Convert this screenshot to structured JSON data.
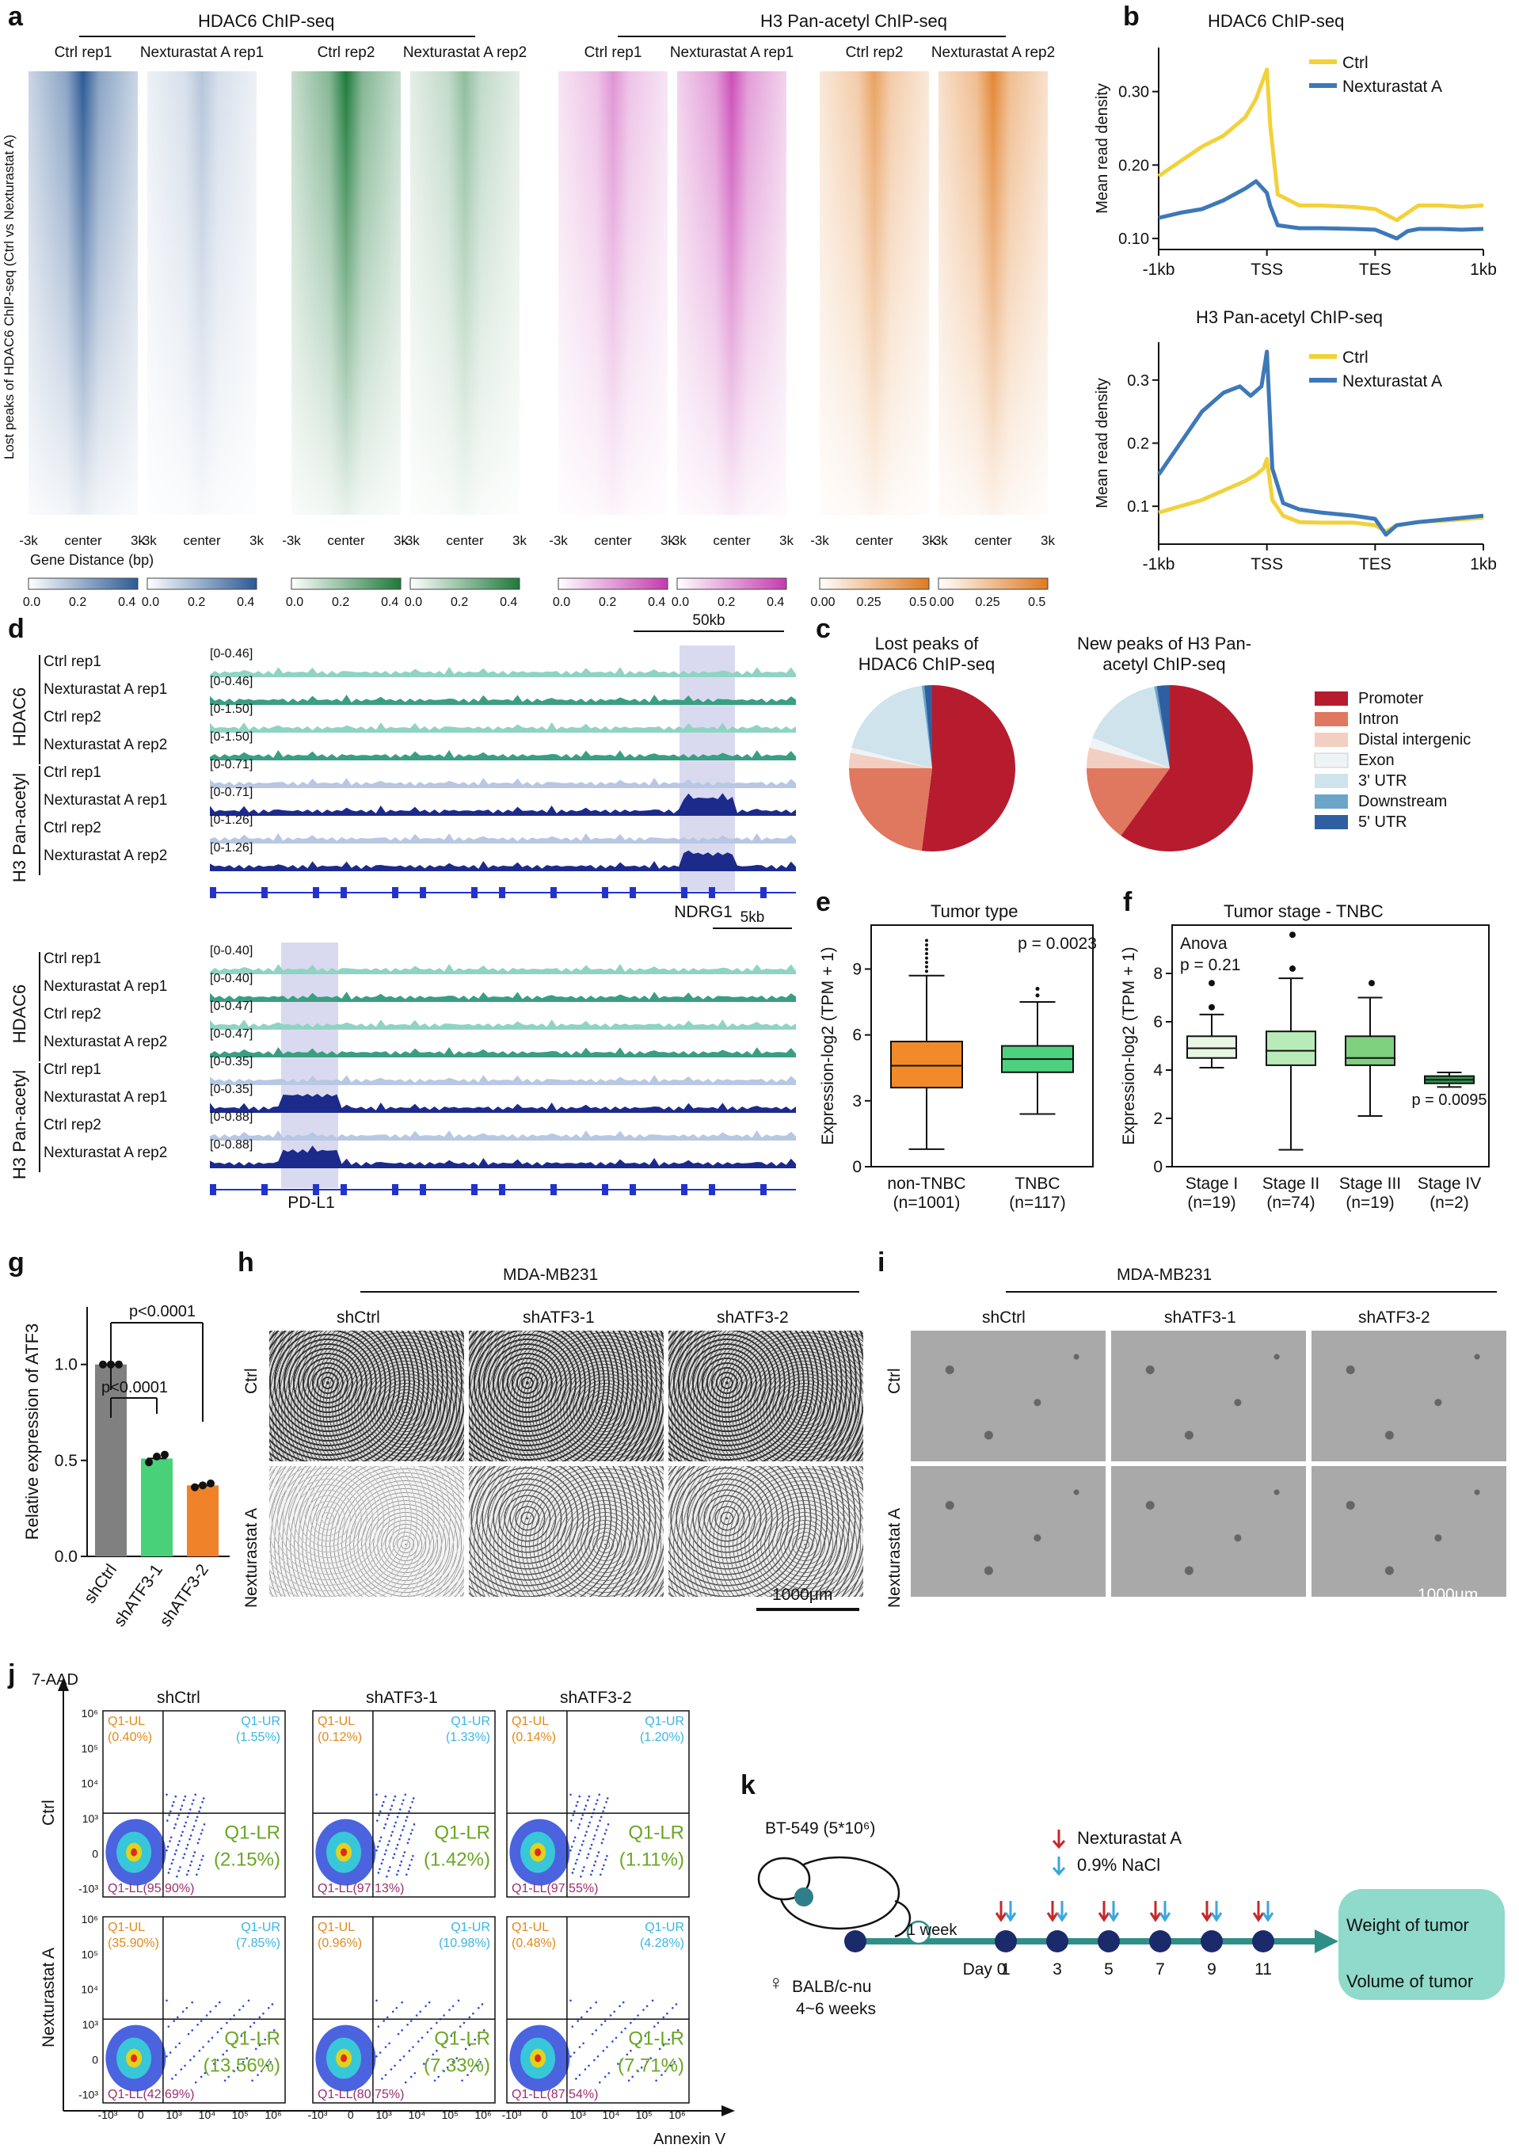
{
  "panels": {
    "a": "a",
    "b": "b",
    "c": "c",
    "d": "d",
    "e": "e",
    "f": "f",
    "g": "g",
    "h": "h",
    "i": "i",
    "j": "j",
    "k": "k"
  },
  "a": {
    "group1": "HDAC6 ChIP-seq",
    "group2": "H3 Pan-acetyl ChIP-seq",
    "ylabel": "Lost peaks of HDAC6 ChIP-seq (Ctrl vs Nexturastat A)",
    "xlabel": "Gene Distance (bp)",
    "heatmaps": [
      {
        "title": "Ctrl rep1",
        "color": "#2c5a96",
        "ticks": [
          "-3k",
          "center",
          "3k"
        ],
        "scale": [
          "0.0",
          "0.2",
          "0.4"
        ]
      },
      {
        "title": "Nexturastat A rep1",
        "color": "#2c5a96",
        "ticks": [
          "-3k",
          "center",
          "3k"
        ],
        "scale": [
          "0.0",
          "0.2",
          "0.4"
        ]
      },
      {
        "title": "Ctrl rep2",
        "color": "#1d7a3a",
        "ticks": [
          "-3k",
          "center",
          "3k"
        ],
        "scale": [
          "0.0",
          "0.2",
          "0.4"
        ]
      },
      {
        "title": "Nexturastat A rep2",
        "color": "#1d7a3a",
        "ticks": [
          "-3k",
          "center",
          "3k"
        ],
        "scale": [
          "0.0",
          "0.2",
          "0.4"
        ]
      },
      {
        "title": "Ctrl rep1",
        "color": "#c63ab0",
        "ticks": [
          "-3k",
          "center",
          "3k"
        ],
        "scale": [
          "0.0",
          "0.2",
          "0.4"
        ]
      },
      {
        "title": "Nexturastat A rep1",
        "color": "#c63ab0",
        "ticks": [
          "-3k",
          "center",
          "3k"
        ],
        "scale": [
          "0.0",
          "0.2",
          "0.4"
        ]
      },
      {
        "title": "Ctrl rep2",
        "color": "#e07a1f",
        "ticks": [
          "-3k",
          "center",
          "3k"
        ],
        "scale": [
          "0.00",
          "0.25",
          "0.5"
        ]
      },
      {
        "title": "Nexturastat A rep2",
        "color": "#e07a1f",
        "ticks": [
          "-3k",
          "center",
          "3k"
        ],
        "scale": [
          "0.00",
          "0.25",
          "0.5"
        ]
      }
    ]
  },
  "chart_data": [
    {
      "type": "line",
      "id": "b1",
      "title": "HDAC6 ChIP-seq",
      "xlabel": "",
      "ylabel": "Mean read density",
      "xticks": [
        "-1kb",
        "TSS",
        "TES",
        "1kb"
      ],
      "yticks": [
        "0.10",
        "0.20",
        "0.30"
      ],
      "ylim": [
        0.085,
        0.36
      ],
      "series": [
        {
          "name": "Ctrl",
          "color": "#f2d13a",
          "x": [
            0,
            0.2,
            0.4,
            0.6,
            0.8,
            0.9,
            1.0,
            1.03,
            1.1,
            1.3,
            1.5,
            1.8,
            2.0,
            2.2,
            2.3,
            2.4,
            2.6,
            2.8,
            3.0
          ],
          "y": [
            0.185,
            0.205,
            0.225,
            0.24,
            0.265,
            0.29,
            0.33,
            0.255,
            0.16,
            0.145,
            0.145,
            0.143,
            0.14,
            0.125,
            0.135,
            0.145,
            0.145,
            0.143,
            0.145
          ]
        },
        {
          "name": "Nexturastat A",
          "color": "#3d78b9",
          "x": [
            0,
            0.2,
            0.4,
            0.6,
            0.8,
            0.9,
            1.0,
            1.03,
            1.1,
            1.3,
            1.5,
            1.8,
            2.0,
            2.2,
            2.3,
            2.4,
            2.6,
            2.8,
            3.0
          ],
          "y": [
            0.128,
            0.135,
            0.14,
            0.152,
            0.168,
            0.178,
            0.162,
            0.145,
            0.118,
            0.114,
            0.114,
            0.113,
            0.112,
            0.1,
            0.11,
            0.113,
            0.113,
            0.112,
            0.113
          ]
        }
      ]
    },
    {
      "type": "line",
      "id": "b2",
      "title": "H3 Pan-acetyl ChIP-seq",
      "xlabel": "",
      "ylabel": "Mean read density",
      "xticks": [
        "-1kb",
        "TSS",
        "TES",
        "1kb"
      ],
      "yticks": [
        "0.1",
        "0.2",
        "0.3"
      ],
      "ylim": [
        0.04,
        0.36
      ],
      "series": [
        {
          "name": "Ctrl",
          "color": "#f2d13a",
          "x": [
            0,
            0.2,
            0.4,
            0.6,
            0.8,
            0.9,
            0.97,
            1.0,
            1.05,
            1.15,
            1.3,
            1.5,
            1.8,
            2.0,
            2.1,
            2.2,
            2.4,
            2.7,
            3.0
          ],
          "y": [
            0.09,
            0.1,
            0.11,
            0.125,
            0.14,
            0.15,
            0.16,
            0.175,
            0.11,
            0.085,
            0.075,
            0.074,
            0.074,
            0.07,
            0.06,
            0.07,
            0.075,
            0.078,
            0.082
          ]
        },
        {
          "name": "Nexturastat A",
          "color": "#3d78b9",
          "x": [
            0,
            0.2,
            0.4,
            0.6,
            0.75,
            0.85,
            0.95,
            1.0,
            1.05,
            1.15,
            1.3,
            1.5,
            1.8,
            2.0,
            2.1,
            2.2,
            2.4,
            2.7,
            3.0
          ],
          "y": [
            0.15,
            0.2,
            0.25,
            0.28,
            0.29,
            0.275,
            0.29,
            0.345,
            0.16,
            0.105,
            0.095,
            0.09,
            0.085,
            0.08,
            0.055,
            0.07,
            0.075,
            0.08,
            0.085
          ]
        }
      ]
    },
    {
      "type": "pie",
      "id": "c1",
      "title": "Lost peaks of HDAC6 ChIP-seq",
      "categories": [
        "Promoter",
        "Intron",
        "Distal intergenic",
        "Exon",
        "3' UTR",
        "Downstream",
        "5' UTR"
      ],
      "values": [
        52,
        23,
        3,
        1,
        19,
        0.5,
        1.5
      ]
    },
    {
      "type": "pie",
      "id": "c2",
      "title": "New peaks of H3 Pan-acetyl ChIP-seq",
      "categories": [
        "Promoter",
        "Intron",
        "Distal intergenic",
        "Exon",
        "3' UTR",
        "Downstream",
        "5' UTR"
      ],
      "values": [
        60,
        15,
        4,
        2,
        16,
        0.5,
        2.5
      ]
    },
    {
      "type": "box",
      "id": "e",
      "title": "Tumor type",
      "ylabel": "Expression-log2 (TPM + 1)",
      "yticks": [
        "0",
        "3",
        "6",
        "9"
      ],
      "ylim": [
        0,
        11
      ],
      "categories": [
        "non-TNBC",
        "TNBC"
      ],
      "n": [
        "(n=1001)",
        "(n=117)"
      ],
      "pvalue": "p = 0.0023",
      "boxes": [
        {
          "min": 0.8,
          "q1": 3.6,
          "median": 4.6,
          "q3": 5.7,
          "max": 8.7
        },
        {
          "min": 2.4,
          "q1": 4.3,
          "median": 4.9,
          "q3": 5.5,
          "max": 7.5
        }
      ]
    },
    {
      "type": "box",
      "id": "f",
      "title": "Tumor stage - TNBC",
      "ylabel": "Expression-log2 (TPM + 1)",
      "yticks": [
        "0",
        "2",
        "4",
        "6",
        "8"
      ],
      "ylim": [
        0,
        10
      ],
      "categories": [
        "Stage I",
        "Stage II",
        "Stage III",
        "Stage IV"
      ],
      "n": [
        "(n=19)",
        "(n=74)",
        "(n=19)",
        "(n=2)"
      ],
      "anova": "Anova",
      "anova_p": "p = 0.21",
      "pvalue": "p = 0.0095",
      "boxes": [
        {
          "min": 4.1,
          "q1": 4.5,
          "median": 4.9,
          "q3": 5.4,
          "max": 6.3
        },
        {
          "min": 0.7,
          "q1": 4.2,
          "median": 4.8,
          "q3": 5.6,
          "max": 7.8
        },
        {
          "min": 2.1,
          "q1": 4.2,
          "median": 4.5,
          "q3": 5.4,
          "max": 7.0
        },
        {
          "min": 3.3,
          "q1": 3.45,
          "median": 3.6,
          "q3": 3.75,
          "max": 3.9
        }
      ]
    },
    {
      "type": "bar",
      "id": "g",
      "ylabel": "Relative expression of ATF3",
      "yticks": [
        "0.0",
        "0.5",
        "1.0"
      ],
      "ylim": [
        0,
        1.3
      ],
      "categories": [
        "shCtrl",
        "shATF3-1",
        "shATF3-2"
      ],
      "values": [
        1.0,
        0.51,
        0.37
      ],
      "colors": [
        "#808080",
        "#49d17a",
        "#f0822a"
      ],
      "points": [
        [
          1.0,
          1.0,
          1.0
        ],
        [
          0.49,
          0.52,
          0.53
        ],
        [
          0.36,
          0.37,
          0.38
        ]
      ],
      "comparisons": [
        "p<0.0001",
        "p<0.0001"
      ]
    }
  ],
  "d": {
    "tracks1": [
      [
        "Ctrl rep1",
        "[0-0.46]"
      ],
      [
        "Nexturastat A rep1",
        "[0-0.46]"
      ],
      [
        "Ctrl rep2",
        "[0-1.50]"
      ],
      [
        "Nexturastat A rep2",
        "[0-1.50]"
      ],
      [
        "Ctrl rep1",
        "[0-0.71]"
      ],
      [
        "Nexturastat A rep1",
        "[0-0.71]"
      ],
      [
        "Ctrl rep2",
        "[0-1.26]"
      ],
      [
        "Nexturastat A rep2",
        "[0-1.26]"
      ]
    ],
    "tracks2": [
      [
        "Ctrl rep1",
        "[0-0.40]"
      ],
      [
        "Nexturastat A rep1",
        "[0-0.40]"
      ],
      [
        "Ctrl rep2",
        "[0-0.47]"
      ],
      [
        "Nexturastat A rep2",
        "[0-0.47]"
      ],
      [
        "Ctrl rep1",
        "[0-0.35]"
      ],
      [
        "Nexturastat A rep1",
        "[0-0.35]"
      ],
      [
        "Ctrl rep2",
        "[0-0.88]"
      ],
      [
        "Nexturastat A rep2",
        "[0-0.88]"
      ]
    ],
    "group_a": "HDAC6",
    "group_b": "H3 Pan-acetyl",
    "scale1": "50kb",
    "scale2": "5kb",
    "gene1": "NDRG1",
    "gene2": "PD-L1"
  },
  "c": {
    "legend": [
      "Promoter",
      "Intron",
      "Distal intergenic",
      "Exon",
      "3' UTR",
      "Downstream",
      "5' UTR"
    ],
    "colors": [
      "#b71c2e",
      "#e0775f",
      "#f2cfc0",
      "#eef3f6",
      "#cfe3ec",
      "#6ba5c8",
      "#2f5fa0"
    ]
  },
  "h": {
    "cell_line": "MDA-MB231",
    "cols": [
      "shCtrl",
      "shATF3-1",
      "shATF3-2"
    ],
    "rows": [
      "Ctrl",
      "Nexturastat A"
    ],
    "scale": "1000μm"
  },
  "i": {
    "cell_line": "MDA-MB231",
    "cols": [
      "shCtrl",
      "shATF3-1",
      "shATF3-2"
    ],
    "rows": [
      "Ctrl",
      "Nexturastat A"
    ],
    "scale": "1000μm"
  },
  "j": {
    "yaxis": "7-AAD",
    "xaxis": "Annexin V",
    "cols": [
      "shCtrl",
      "shATF3-1",
      "shATF3-2"
    ],
    "rows": [
      "Ctrl",
      "Nexturastat A"
    ],
    "yticks": [
      "10⁶",
      "10⁵",
      "10⁴",
      "10³",
      "0",
      "-10³"
    ],
    "xticks": [
      "-10³",
      "0",
      "10³",
      "10⁴",
      "10⁵",
      "10⁶"
    ],
    "plots": [
      [
        "Q1-UL",
        "(0.40%)",
        "Q1-UR",
        "(1.55%)",
        "Q1-LR",
        "(2.15%)",
        "Q1-LL(95.90%)"
      ],
      [
        "Q1-UL",
        "(0.12%)",
        "Q1-UR",
        "(1.33%)",
        "Q1-LR",
        "(1.42%)",
        "Q1-LL(97.13%)"
      ],
      [
        "Q1-UL",
        "(0.14%)",
        "Q1-UR",
        "(1.20%)",
        "Q1-LR",
        "(1.11%)",
        "Q1-LL(97.55%)"
      ],
      [
        "Q1-UL",
        "(35.90%)",
        "Q1-UR",
        "(7.85%)",
        "Q1-LR",
        "(13.56%)",
        "Q1-LL(42.69%)"
      ],
      [
        "Q1-UL",
        "(0.96%)",
        "Q1-UR",
        "(10.98%)",
        "Q1-LR",
        "(7.33%)",
        "Q1-LL(80.75%)"
      ],
      [
        "Q1-UL",
        "(0.48%)",
        "Q1-UR",
        "(4.28%)",
        "Q1-LR",
        "(7.71%)",
        "Q1-LL(87.54%)"
      ]
    ]
  },
  "k": {
    "cells": "BT-549 (5*10⁶)",
    "legend1": "Nexturastat A",
    "legend2": "0.9% NaCl",
    "mouse": "BALB/c-nu",
    "age": "4~6 weeks",
    "sex": "♀",
    "interval": "1 week",
    "days": [
      "Day 0",
      "1",
      "3",
      "5",
      "7",
      "9",
      "11"
    ],
    "out1": "Weight of tumor",
    "out2": "Volume of tumor",
    "red": "#c62828",
    "blue": "#3aa6e0",
    "teal": "#2f8f86"
  }
}
